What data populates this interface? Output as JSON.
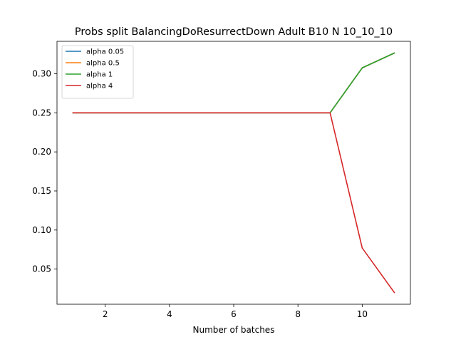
{
  "chart_data": {
    "type": "line",
    "title": "Probs split BalancingDoResurrectDown Adult B10 N 10_10_10",
    "xlabel": "Number of batches",
    "ylabel": "",
    "xlim": [
      0.5,
      11.5
    ],
    "ylim": [
      0.005,
      0.3415
    ],
    "xticks": [
      2,
      4,
      6,
      8,
      10
    ],
    "yticks": [
      0.05,
      0.1,
      0.15,
      0.2,
      0.25,
      0.3
    ],
    "ytick_labels": [
      "0.05",
      "0.10",
      "0.15",
      "0.20",
      "0.25",
      "0.30"
    ],
    "grid": false,
    "legend_position": "top-left",
    "x": [
      1,
      2,
      3,
      4,
      5,
      6,
      7,
      8,
      9,
      10,
      11
    ],
    "series": [
      {
        "name": "alpha 0.05",
        "color": "#1f77b4",
        "values": [
          0.25,
          0.25,
          0.25,
          0.25,
          0.25,
          0.25,
          0.25,
          0.25,
          0.25,
          0.3075,
          0.3265
        ]
      },
      {
        "name": "alpha 0.5",
        "color": "#ff7f0e",
        "values": [
          0.25,
          0.25,
          0.25,
          0.25,
          0.25,
          0.25,
          0.25,
          0.25,
          0.25,
          0.3075,
          0.3265
        ]
      },
      {
        "name": "alpha 1",
        "color": "#2ca02c",
        "values": [
          0.25,
          0.25,
          0.25,
          0.25,
          0.25,
          0.25,
          0.25,
          0.25,
          0.25,
          0.3075,
          0.3265
        ]
      },
      {
        "name": "alpha 4",
        "color": "#d62728",
        "values": [
          0.25,
          0.25,
          0.25,
          0.25,
          0.25,
          0.25,
          0.25,
          0.25,
          0.25,
          0.077,
          0.02
        ]
      }
    ]
  }
}
